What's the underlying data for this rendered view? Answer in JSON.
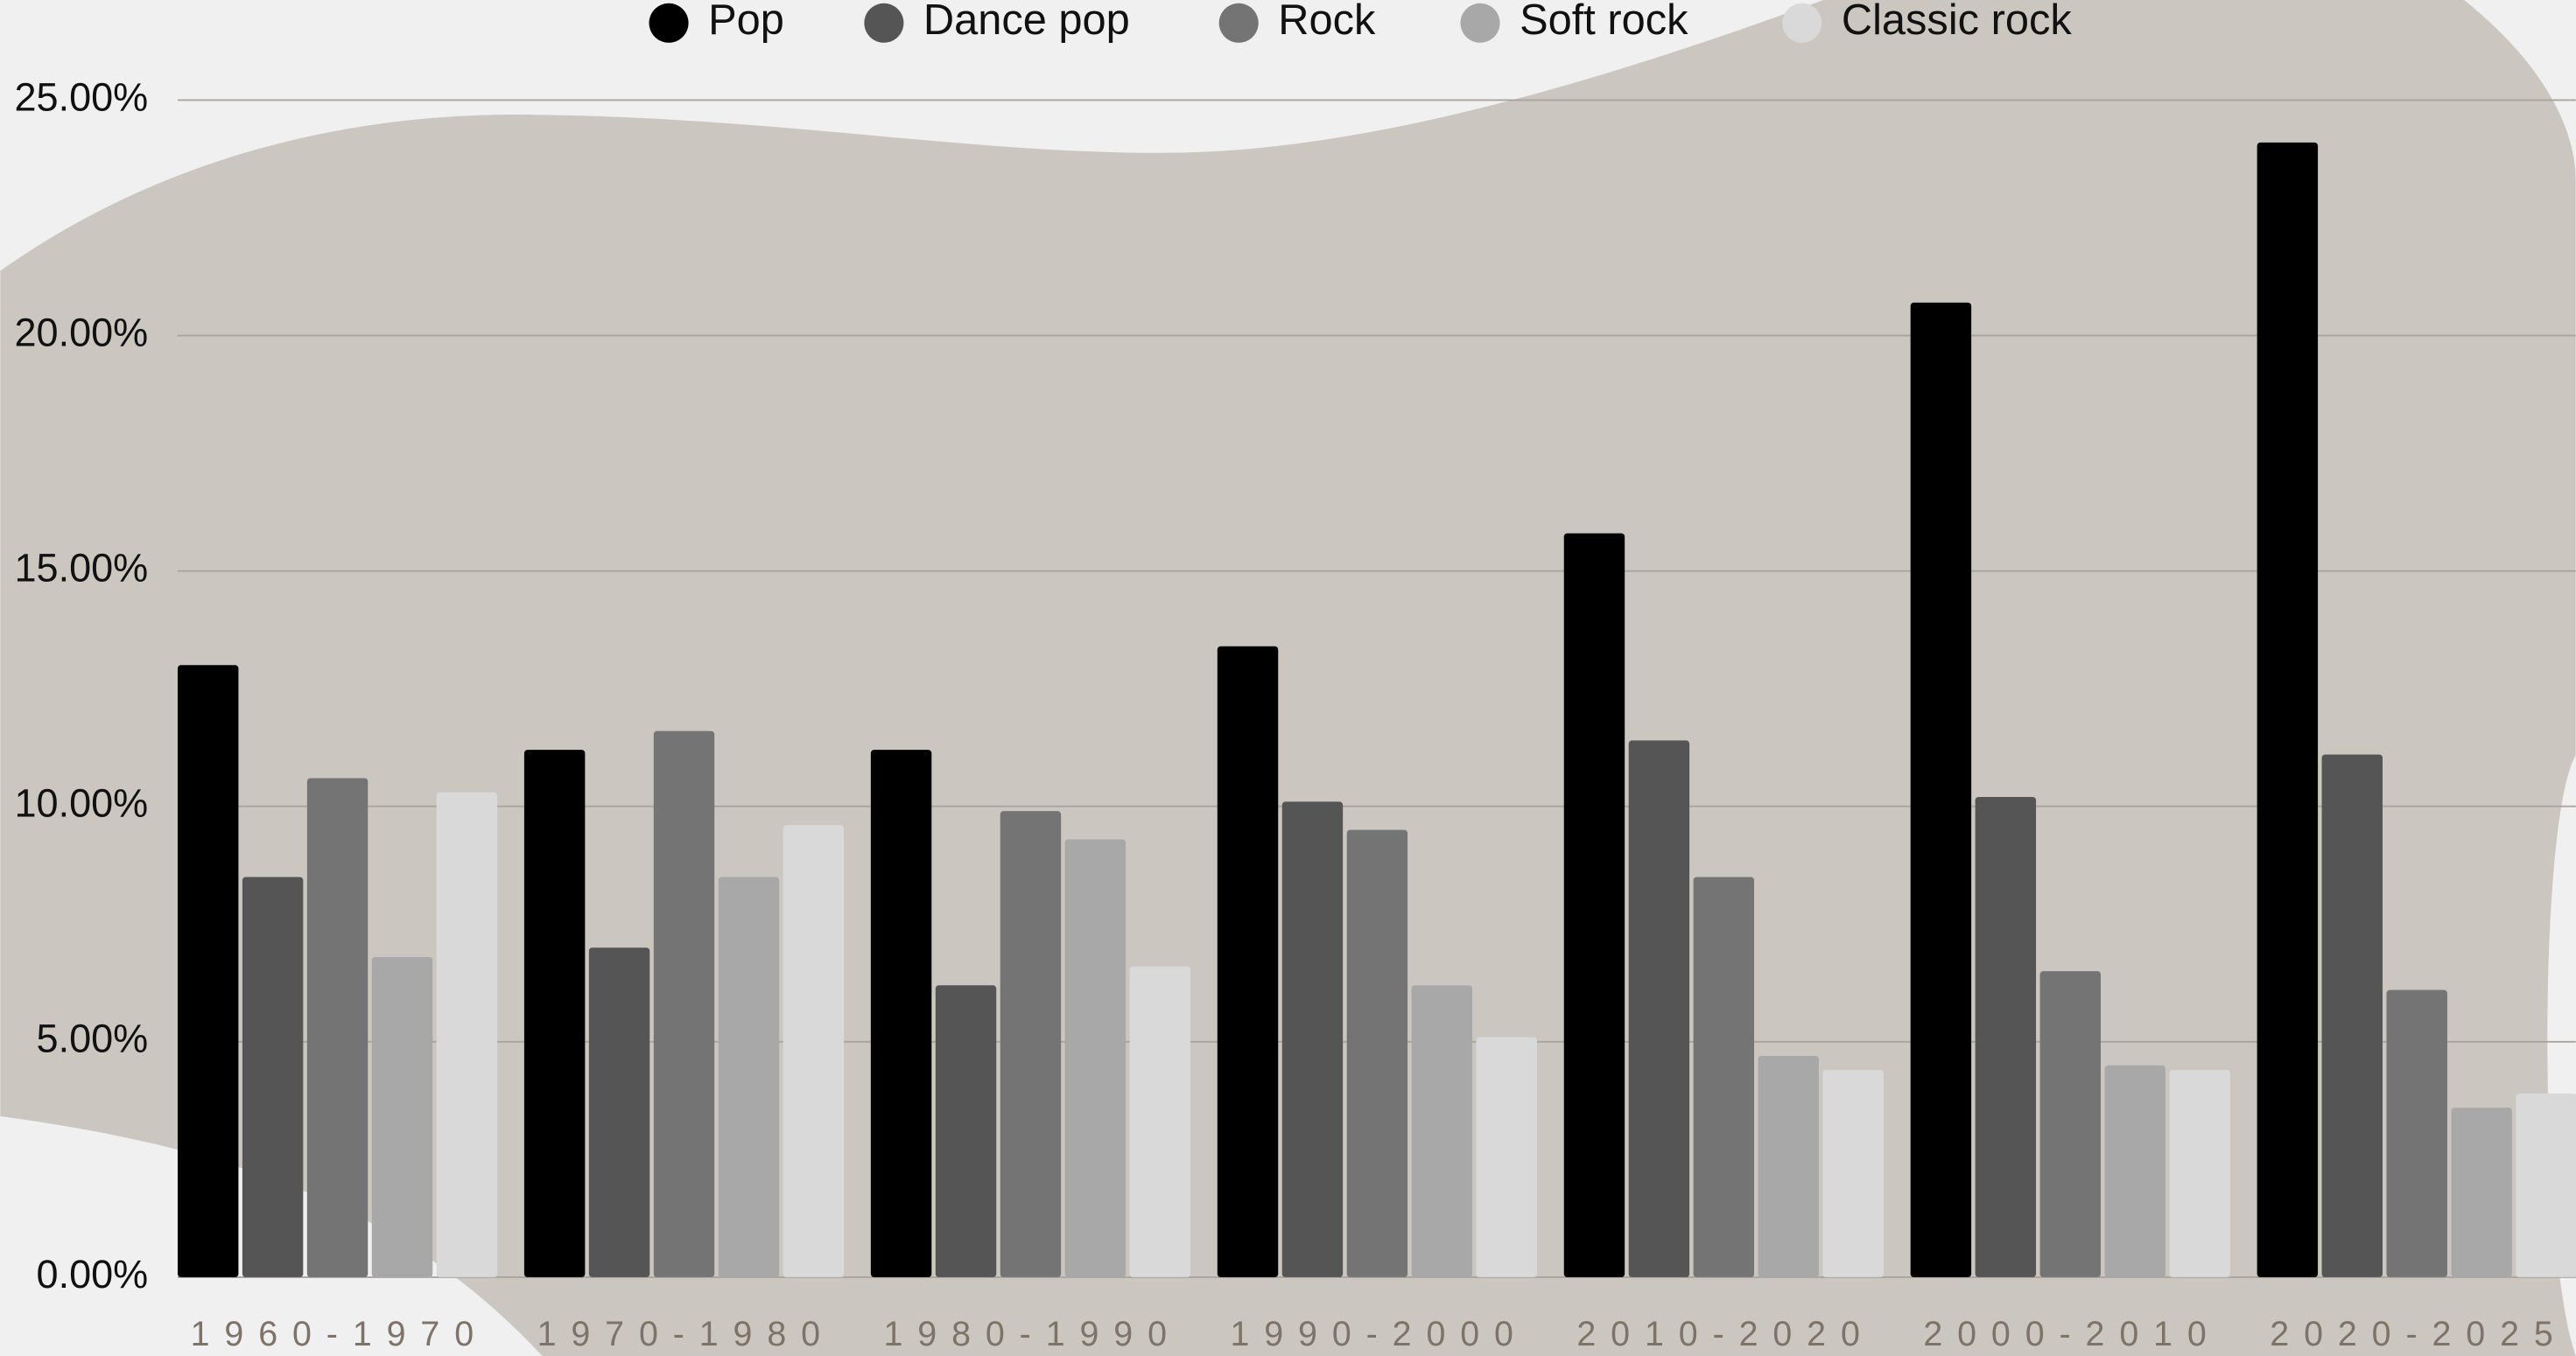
{
  "chart_data": {
    "type": "bar",
    "categories": [
      "1960-1970",
      "1970-1980",
      "1980-1990",
      "1990-2000",
      "2010-2020",
      "2000-2010",
      "2020-2025"
    ],
    "series": [
      {
        "name": "Pop",
        "color": "#000000",
        "values": [
          13.0,
          11.2,
          11.2,
          13.4,
          15.8,
          20.7,
          24.1
        ]
      },
      {
        "name": "Dance pop",
        "color": "#555555",
        "values": [
          8.5,
          7.0,
          6.2,
          10.1,
          11.4,
          10.2,
          11.1
        ]
      },
      {
        "name": "Rock",
        "color": "#747474",
        "values": [
          10.6,
          11.6,
          9.9,
          9.5,
          8.5,
          6.5,
          6.1
        ]
      },
      {
        "name": "Soft rock",
        "color": "#a8a8a8",
        "values": [
          6.8,
          8.5,
          9.3,
          6.2,
          4.7,
          4.5,
          3.6
        ]
      },
      {
        "name": "Classic rock",
        "color": "#d9d9d9",
        "values": [
          10.3,
          9.6,
          6.6,
          5.1,
          4.4,
          4.4,
          3.9
        ]
      }
    ],
    "ylim": [
      0,
      25
    ],
    "yticks": [
      {
        "value": 0,
        "label": "0.00%"
      },
      {
        "value": 5,
        "label": "5.00%"
      },
      {
        "value": 10,
        "label": "10.00%"
      },
      {
        "value": 15,
        "label": "15.00%"
      },
      {
        "value": 20,
        "label": "20.00%"
      },
      {
        "value": 25,
        "label": "25.00%"
      }
    ],
    "grid": true,
    "legend": "top"
  }
}
